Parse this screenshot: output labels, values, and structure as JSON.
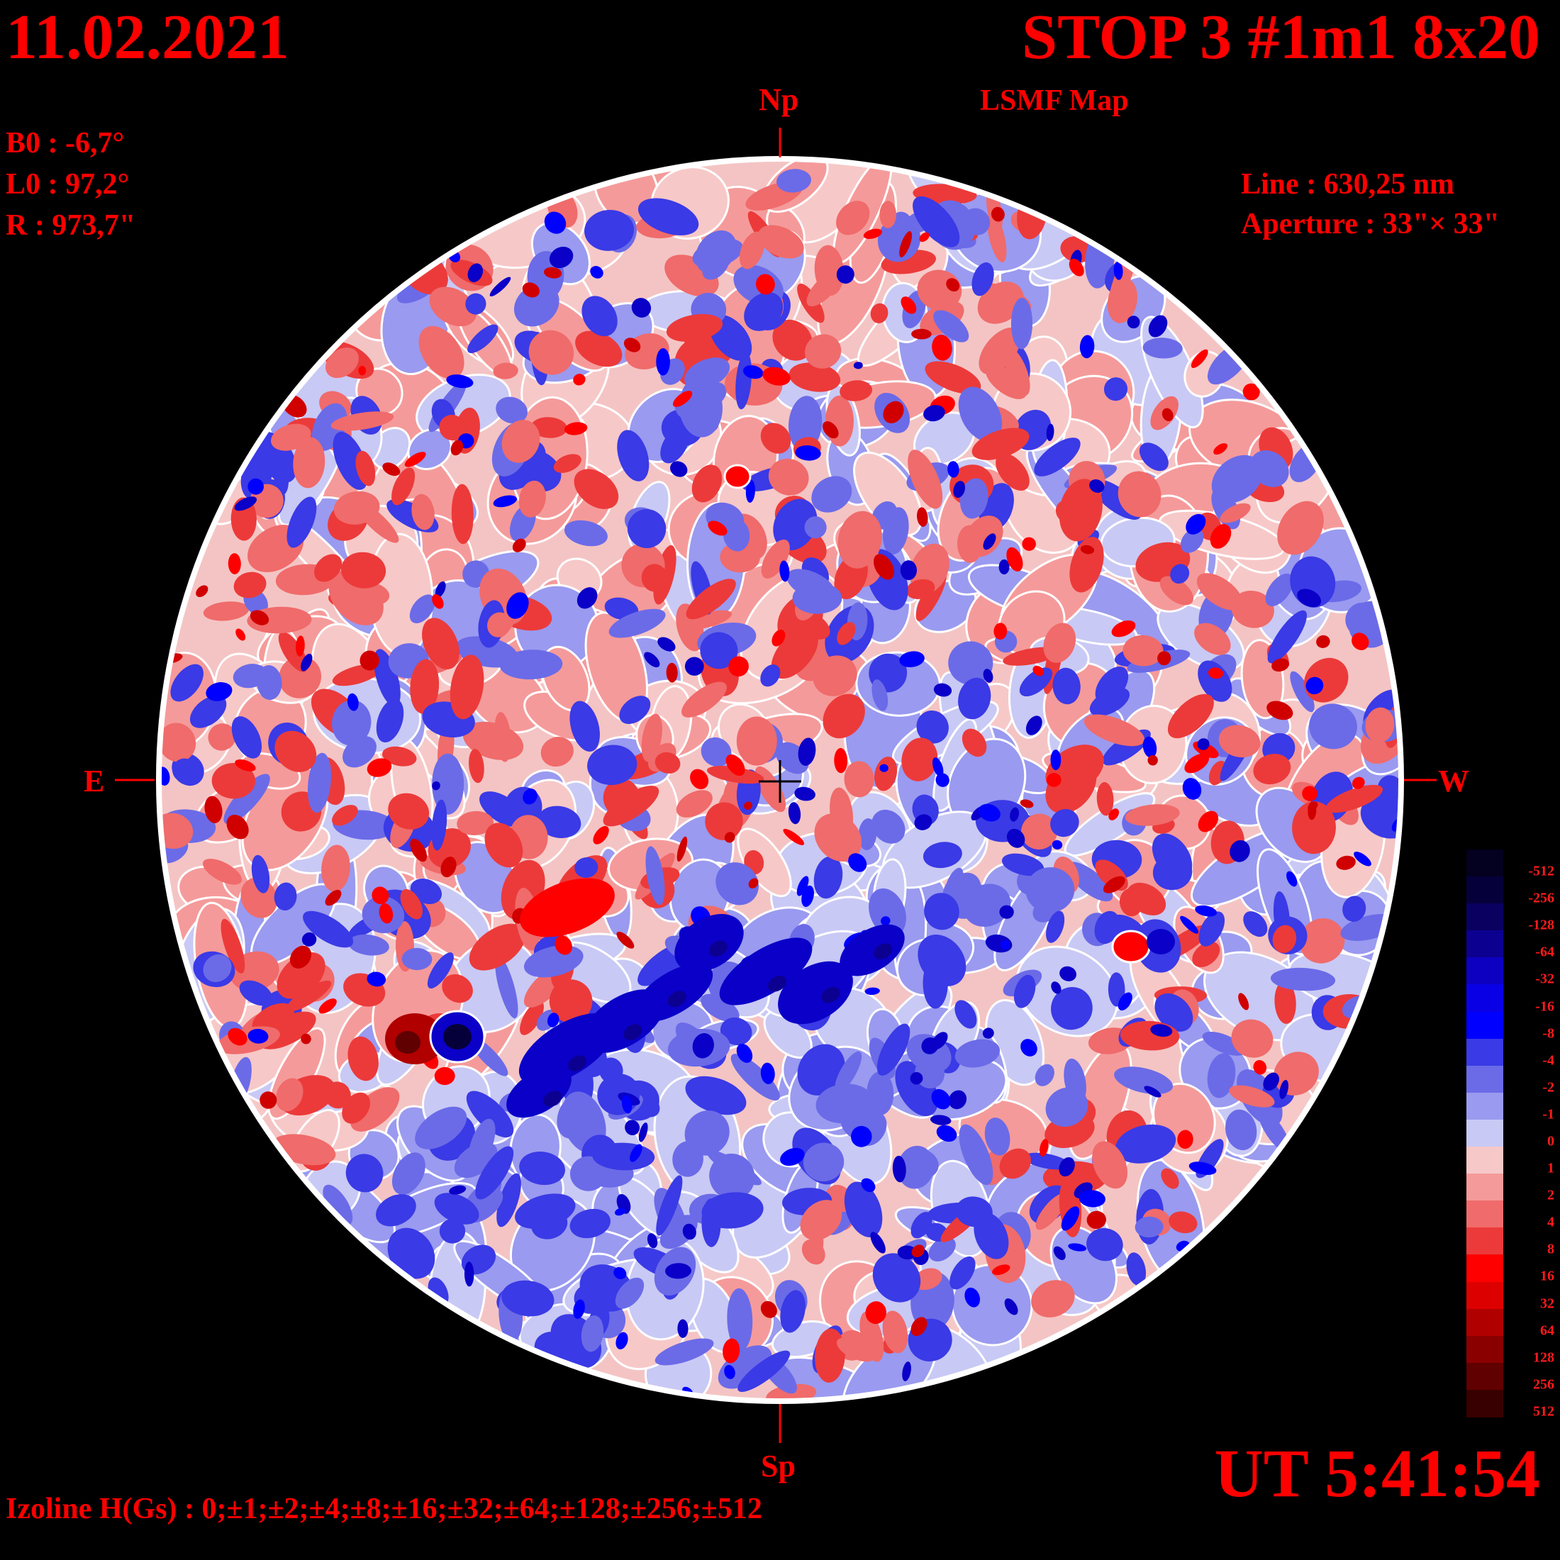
{
  "header": {
    "date": "11.02.2021",
    "title": "STOP 3 #1m1 8x20",
    "subtitle": "LSMF  Map"
  },
  "params": {
    "b0": "B0 : -6,7°",
    "l0": "L0 : 97,2°",
    "r": "R  : 973,7\""
  },
  "instrument": {
    "line": "Line :  630,25 nm",
    "aperture": "Aperture : 33\"× 33\""
  },
  "orientation": {
    "north": "Np",
    "south": "Sp",
    "east": "E",
    "west": "W"
  },
  "footer": {
    "ut": "UT 5:41:54",
    "izoline": "Izoline H(Gs) : 0;±1;±2;±4;±8;±16;±32;±64;±128;±256;±512"
  },
  "scale": {
    "labels": [
      "-512",
      "-256",
      "-128",
      "-64",
      "-32",
      "-16",
      "-8",
      "-4",
      "-2",
      "-1",
      "0",
      "1",
      "2",
      "4",
      "8",
      "16",
      "32",
      "64",
      "128",
      "256",
      "512"
    ],
    "colors": [
      "#04001f",
      "#06003a",
      "#0a0060",
      "#0c0090",
      "#0d00c0",
      "#0a00e6",
      "#0000ff",
      "#3a3ae6",
      "#6b6be8",
      "#9a9af0",
      "#c9c9f5",
      "#f7c8c8",
      "#f59a9a",
      "#f06b6b",
      "#ec3a3a",
      "#ff0000",
      "#dd0000",
      "#b00000",
      "#8a0000",
      "#600000",
      "#380000"
    ]
  },
  "colors": {
    "background": "#000000",
    "text": "#ff0000",
    "disk_edge": "#ffffff",
    "isoline": "#ffffff"
  }
}
